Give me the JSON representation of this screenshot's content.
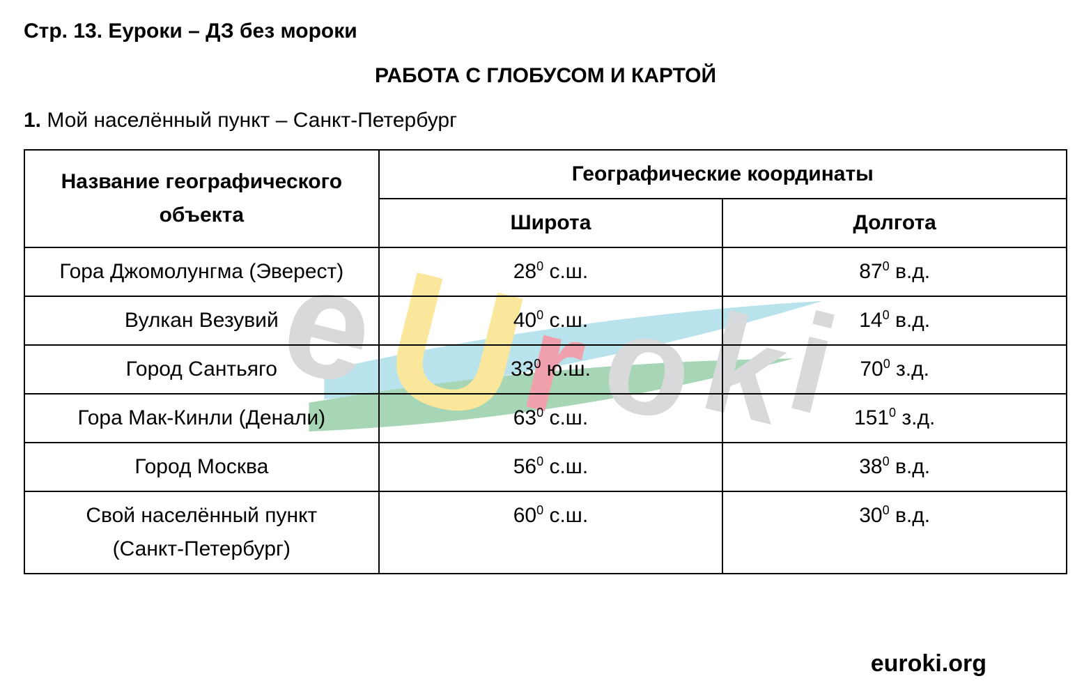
{
  "type": "document-table",
  "background_color": "#ffffff",
  "text_color": "#000000",
  "font_family": "Arial",
  "header": {
    "text": "Стр. 13. Еуроки – ДЗ без мороки",
    "fontsize": 30,
    "fontweight": 700
  },
  "title": {
    "text": "РАБОТА С ГЛОБУСОМ И КАРТОЙ",
    "fontsize": 30,
    "fontweight": 700,
    "align": "center"
  },
  "intro": {
    "lead": "1.",
    "text": " Мой населённый пункт – Санкт-Петербург",
    "fontsize": 30
  },
  "table": {
    "border_color": "#000000",
    "border_width": 2,
    "fontsize": 30,
    "columns": {
      "name_header": "Название географического объекта",
      "coords_header": "Географические координаты",
      "lat_header": "Широта",
      "lon_header": "Долгота",
      "widths_pct": [
        34,
        33,
        33
      ]
    },
    "rows": [
      {
        "name_html": "Гора Джомолунгма (Эверест)",
        "lat_html": "28<sup>0</sup> с.ш.",
        "lon_html": "87<sup>0</sup> в.д."
      },
      {
        "name_html": "Вулкан Везувий",
        "lat_html": "40<sup>0</sup> с.ш.",
        "lon_html": "14<sup>0</sup> в.д."
      },
      {
        "name_html": "Город Сантьяго",
        "lat_html": "33<sup>0</sup> ю.ш.",
        "lon_html": "70<sup>0</sup> з.д."
      },
      {
        "name_html": "Гора Мак-Кинли (Денали)",
        "lat_html": "63<sup>0</sup> с.ш.",
        "lon_html": "151<sup>0</sup> з.д."
      },
      {
        "name_html": "Город Москва",
        "lat_html": "56<sup>0</sup> с.ш.",
        "lon_html": "38<sup>0</sup> в.д."
      },
      {
        "name_html": "Свой населённый пункт<br>(Санкт-Петербург)",
        "lat_html": "60<sup>0</sup> с.ш.",
        "lon_html": "30<sup>0</sup> в.д.",
        "valign_top": true
      }
    ]
  },
  "footer": {
    "text": "euroki.org",
    "fontsize": 34,
    "fontweight": 700
  },
  "watermark": {
    "text": "eUroki",
    "colors": {
      "e_gray": "#b9bbbe",
      "u_yellow": "#f6d44a",
      "r_red": "#e2546a",
      "o_gray": "#b9bbbe",
      "k_gray": "#b9bbbe",
      "i_gray": "#b9bbbe",
      "swoosh_green": "#5fb679",
      "swoosh_teal": "#7fcdde"
    },
    "opacity": 0.55,
    "rotation_deg": 14
  }
}
